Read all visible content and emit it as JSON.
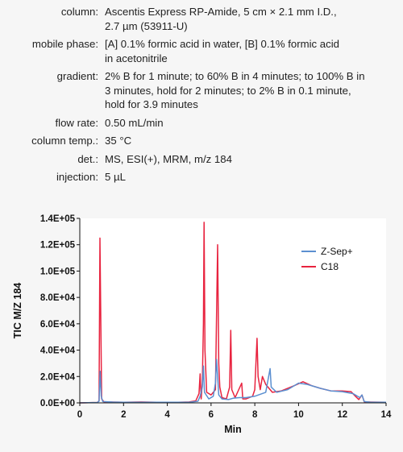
{
  "conditions": [
    {
      "key": "column:",
      "lines": [
        "Ascentis Express RP-Amide, 5 cm × 2.1 mm I.D.,",
        "2.7 µm (53911-U)"
      ]
    },
    {
      "key": "mobile phase:",
      "lines": [
        "[A] 0.1% formic acid in water, [B] 0.1% formic acid",
        "in acetonitrile"
      ]
    },
    {
      "key": "gradient:",
      "lines": [
        "2% B for 1 minute; to 60% B in 4 minutes; to 100% B in",
        "3 minutes, hold for 2 minutes; to 2% B in 0.1 minute,",
        "hold for 3.9 minutes"
      ]
    },
    {
      "key": "flow rate:",
      "lines": [
        "0.50 mL/min"
      ]
    },
    {
      "key": "column temp.:",
      "lines": [
        "35 °C"
      ]
    },
    {
      "key": "det.:",
      "lines": [
        "MS, ESI(+), MRM, m/z 184"
      ]
    },
    {
      "key": "injection:",
      "lines": [
        "5 µL"
      ]
    }
  ],
  "chart_data": {
    "type": "line",
    "xlabel": "Min",
    "ylabel": "TIC M/Z 184",
    "xlim": [
      0,
      14
    ],
    "ylim": [
      0,
      140000
    ],
    "xticks": [
      0,
      2,
      4,
      6,
      8,
      10,
      12,
      14
    ],
    "xtick_labels": [
      "0",
      "2",
      "4",
      "6",
      "8",
      "10",
      "12",
      "14"
    ],
    "yticks": [
      0,
      20000,
      40000,
      60000,
      80000,
      100000,
      120000,
      140000
    ],
    "ytick_labels": [
      "0.0E+00",
      "2.0E+04",
      "4.0E+04",
      "6.0E+04",
      "8.0E+04",
      "1.0E+05",
      "1.2E+05",
      "1.4E+05"
    ],
    "legend_position": "top-right",
    "series": [
      {
        "name": "C18",
        "color": "#e8233f",
        "points": [
          [
            0,
            0
          ],
          [
            0.8,
            300
          ],
          [
            0.88,
            1500
          ],
          [
            0.92,
            125000
          ],
          [
            0.96,
            60000
          ],
          [
            1.0,
            3000
          ],
          [
            1.1,
            800
          ],
          [
            1.5,
            600
          ],
          [
            2.0,
            500
          ],
          [
            2.8,
            700
          ],
          [
            3.5,
            500
          ],
          [
            4.5,
            500
          ],
          [
            5.0,
            700
          ],
          [
            5.3,
            1500
          ],
          [
            5.45,
            7000
          ],
          [
            5.5,
            22000
          ],
          [
            5.55,
            3000
          ],
          [
            5.6,
            15000
          ],
          [
            5.65,
            60000
          ],
          [
            5.68,
            137000
          ],
          [
            5.72,
            40000
          ],
          [
            5.8,
            8000
          ],
          [
            6.0,
            6000
          ],
          [
            6.2,
            10000
          ],
          [
            6.3,
            120000
          ],
          [
            6.35,
            30000
          ],
          [
            6.4,
            12000
          ],
          [
            6.5,
            4000
          ],
          [
            6.7,
            3000
          ],
          [
            6.85,
            12000
          ],
          [
            6.9,
            55000
          ],
          [
            6.95,
            10000
          ],
          [
            7.1,
            4000
          ],
          [
            7.4,
            15000
          ],
          [
            7.45,
            3000
          ],
          [
            7.6,
            3000
          ],
          [
            7.9,
            5000
          ],
          [
            8.0,
            10000
          ],
          [
            8.1,
            49000
          ],
          [
            8.15,
            20000
          ],
          [
            8.25,
            10000
          ],
          [
            8.35,
            20000
          ],
          [
            8.5,
            14000
          ],
          [
            8.8,
            8000
          ],
          [
            9.2,
            9000
          ],
          [
            9.8,
            13000
          ],
          [
            10.2,
            16000
          ],
          [
            10.6,
            13000
          ],
          [
            11.0,
            11000
          ],
          [
            11.5,
            9000
          ],
          [
            12.0,
            9000
          ],
          [
            12.4,
            8500
          ],
          [
            12.6,
            5000
          ],
          [
            12.75,
            2500
          ],
          [
            12.9,
            6000
          ],
          [
            13.0,
            800
          ],
          [
            13.3,
            600
          ],
          [
            14.0,
            400
          ]
        ]
      },
      {
        "name": "Z-Sep+",
        "color": "#5b8fd0",
        "points": [
          [
            0,
            0
          ],
          [
            0.8,
            300
          ],
          [
            0.88,
            1200
          ],
          [
            0.93,
            24000
          ],
          [
            0.98,
            5000
          ],
          [
            1.05,
            1000
          ],
          [
            1.5,
            600
          ],
          [
            2.0,
            500
          ],
          [
            3.0,
            500
          ],
          [
            4.0,
            500
          ],
          [
            5.0,
            500
          ],
          [
            5.4,
            1200
          ],
          [
            5.5,
            5000
          ],
          [
            5.6,
            12000
          ],
          [
            5.65,
            28000
          ],
          [
            5.7,
            8000
          ],
          [
            5.9,
            3000
          ],
          [
            6.1,
            5000
          ],
          [
            6.2,
            15000
          ],
          [
            6.25,
            33000
          ],
          [
            6.3,
            20000
          ],
          [
            6.35,
            6000
          ],
          [
            6.5,
            3000
          ],
          [
            6.8,
            2500
          ],
          [
            7.0,
            3500
          ],
          [
            7.3,
            4000
          ],
          [
            7.6,
            4000
          ],
          [
            8.0,
            5000
          ],
          [
            8.5,
            8000
          ],
          [
            8.7,
            26000
          ],
          [
            8.75,
            12000
          ],
          [
            9.0,
            8000
          ],
          [
            9.5,
            10000
          ],
          [
            10.0,
            15000
          ],
          [
            10.4,
            14000
          ],
          [
            11.0,
            11000
          ],
          [
            11.5,
            9000
          ],
          [
            12.0,
            8500
          ],
          [
            12.5,
            7000
          ],
          [
            12.8,
            4000
          ],
          [
            12.9,
            6000
          ],
          [
            13.0,
            1000
          ],
          [
            13.3,
            500
          ],
          [
            14.0,
            400
          ]
        ]
      }
    ]
  }
}
